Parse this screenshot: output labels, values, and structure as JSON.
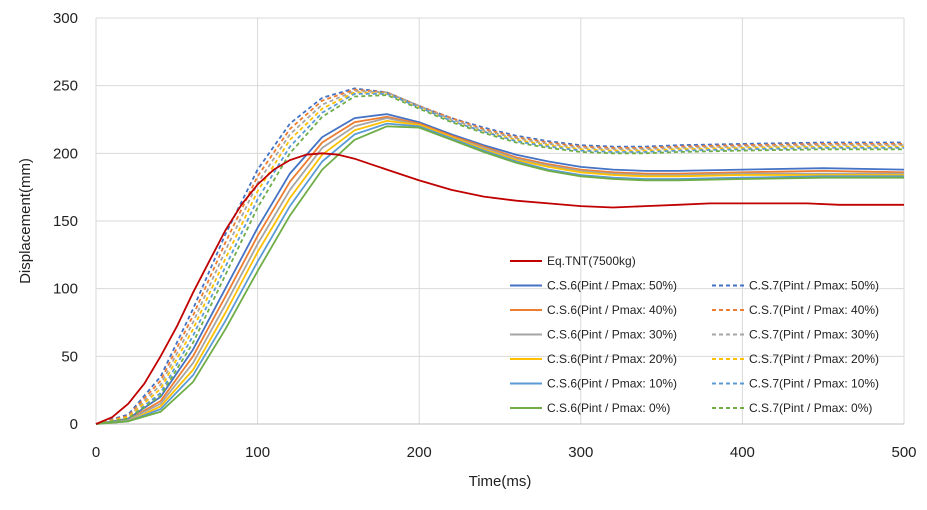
{
  "chart_data": {
    "type": "line",
    "xlabel": "Time(ms)",
    "ylabel": "Displacement(mm)",
    "xlim": [
      0,
      500
    ],
    "ylim": [
      0,
      300
    ],
    "xticks": [
      0,
      100,
      200,
      300,
      400,
      500
    ],
    "yticks": [
      0,
      50,
      100,
      150,
      200,
      250,
      300
    ],
    "grid": true,
    "legend_position": "bottom-right",
    "series": [
      {
        "name": "Eq.TNT(7500kg)",
        "color": "#c00000",
        "dash": "solid",
        "x": [
          0,
          10,
          20,
          30,
          40,
          50,
          60,
          70,
          80,
          90,
          100,
          110,
          120,
          130,
          140,
          150,
          160,
          170,
          180,
          190,
          200,
          220,
          240,
          260,
          280,
          300,
          320,
          340,
          360,
          380,
          400,
          420,
          440,
          460,
          480,
          500
        ],
        "y": [
          0,
          5,
          15,
          30,
          50,
          72,
          97,
          120,
          143,
          162,
          177,
          188,
          195,
          199,
          200,
          199,
          196,
          192,
          188,
          184,
          180,
          173,
          168,
          165,
          163,
          161,
          160,
          161,
          162,
          163,
          163,
          163,
          163,
          162,
          162,
          162
        ]
      },
      {
        "name": "C.S.6(Pint / Pmax: 50%)",
        "color": "#4472c4",
        "dash": "solid",
        "x": [
          0,
          20,
          40,
          60,
          80,
          100,
          120,
          140,
          160,
          180,
          200,
          220,
          240,
          260,
          280,
          300,
          320,
          340,
          360,
          400,
          450,
          500
        ],
        "y": [
          0,
          4,
          20,
          55,
          100,
          145,
          185,
          212,
          226,
          229,
          223,
          214,
          206,
          199,
          194,
          190,
          188,
          187,
          187,
          188,
          189,
          188
        ]
      },
      {
        "name": "C.S.6(Pint / Pmax: 40%)",
        "color": "#ed7d31",
        "dash": "solid",
        "x": [
          0,
          20,
          40,
          60,
          80,
          100,
          120,
          140,
          160,
          180,
          200,
          220,
          240,
          260,
          280,
          300,
          320,
          340,
          360,
          400,
          450,
          500
        ],
        "y": [
          0,
          3,
          17,
          50,
          94,
          139,
          179,
          208,
          223,
          227,
          222,
          213,
          205,
          197,
          192,
          188,
          186,
          185,
          185,
          186,
          187,
          186
        ]
      },
      {
        "name": "C.S.6(Pint / Pmax: 30%)",
        "color": "#a5a5a5",
        "dash": "solid",
        "x": [
          0,
          20,
          40,
          60,
          80,
          100,
          120,
          140,
          160,
          180,
          200,
          220,
          240,
          260,
          280,
          300,
          320,
          340,
          360,
          400,
          450,
          500
        ],
        "y": [
          0,
          3,
          15,
          45,
          88,
          133,
          173,
          204,
          220,
          226,
          221,
          212,
          204,
          196,
          191,
          187,
          185,
          184,
          184,
          185,
          185,
          185
        ]
      },
      {
        "name": "C.S.6(Pint / Pmax: 20%)",
        "color": "#ffc000",
        "dash": "solid",
        "x": [
          0,
          20,
          40,
          60,
          80,
          100,
          120,
          140,
          160,
          180,
          200,
          220,
          240,
          260,
          280,
          300,
          320,
          340,
          360,
          400,
          450,
          500
        ],
        "y": [
          0,
          2,
          13,
          40,
          82,
          127,
          167,
          199,
          217,
          224,
          221,
          212,
          203,
          195,
          190,
          186,
          184,
          183,
          183,
          184,
          184,
          184
        ]
      },
      {
        "name": "C.S.6(Pint / Pmax: 10%)",
        "color": "#5b9bd5",
        "dash": "solid",
        "x": [
          0,
          20,
          40,
          60,
          80,
          100,
          120,
          140,
          160,
          180,
          200,
          220,
          240,
          260,
          280,
          300,
          320,
          340,
          360,
          400,
          450,
          500
        ],
        "y": [
          0,
          2,
          11,
          36,
          76,
          120,
          161,
          194,
          214,
          222,
          220,
          211,
          202,
          194,
          188,
          184,
          182,
          181,
          181,
          182,
          183,
          183
        ]
      },
      {
        "name": "C.S.6(Pint / Pmax: 0%)",
        "color": "#70ad47",
        "dash": "solid",
        "x": [
          0,
          20,
          40,
          60,
          80,
          100,
          120,
          140,
          160,
          180,
          200,
          220,
          240,
          260,
          280,
          300,
          320,
          340,
          360,
          400,
          450,
          500
        ],
        "y": [
          0,
          2,
          9,
          31,
          70,
          113,
          154,
          188,
          210,
          220,
          219,
          210,
          201,
          193,
          187,
          183,
          181,
          180,
          180,
          181,
          182,
          182
        ]
      },
      {
        "name": "C.S.7(Pint / Pmax: 50%)",
        "color": "#4472c4",
        "dash": "dashed",
        "x": [
          0,
          20,
          40,
          60,
          80,
          100,
          120,
          140,
          160,
          180,
          200,
          220,
          240,
          260,
          280,
          300,
          320,
          340,
          360,
          400,
          450,
          500
        ],
        "y": [
          0,
          7,
          35,
          85,
          140,
          188,
          222,
          241,
          248,
          245,
          235,
          226,
          219,
          213,
          209,
          206,
          205,
          205,
          206,
          207,
          208,
          208
        ]
      },
      {
        "name": "C.S.7(Pint / Pmax: 40%)",
        "color": "#ed7d31",
        "dash": "dashed",
        "x": [
          0,
          20,
          40,
          60,
          80,
          100,
          120,
          140,
          160,
          180,
          200,
          220,
          240,
          260,
          280,
          300,
          320,
          340,
          360,
          400,
          450,
          500
        ],
        "y": [
          0,
          6,
          32,
          80,
          134,
          183,
          218,
          239,
          247,
          245,
          235,
          226,
          218,
          212,
          208,
          205,
          204,
          204,
          205,
          206,
          207,
          207
        ]
      },
      {
        "name": "C.S.7(Pint / Pmax: 30%)",
        "color": "#a5a5a5",
        "dash": "dashed",
        "x": [
          0,
          20,
          40,
          60,
          80,
          100,
          120,
          140,
          160,
          180,
          200,
          220,
          240,
          260,
          280,
          300,
          320,
          340,
          360,
          400,
          450,
          500
        ],
        "y": [
          0,
          5,
          29,
          75,
          128,
          178,
          214,
          236,
          246,
          245,
          235,
          225,
          217,
          211,
          207,
          204,
          203,
          203,
          204,
          205,
          206,
          206
        ]
      },
      {
        "name": "C.S.7(Pint / Pmax: 20%)",
        "color": "#ffc000",
        "dash": "dashed",
        "x": [
          0,
          20,
          40,
          60,
          80,
          100,
          120,
          140,
          160,
          180,
          200,
          220,
          240,
          260,
          280,
          300,
          320,
          340,
          360,
          400,
          450,
          500
        ],
        "y": [
          0,
          5,
          26,
          70,
          122,
          172,
          210,
          233,
          245,
          244,
          234,
          224,
          216,
          210,
          206,
          203,
          202,
          202,
          203,
          204,
          205,
          205
        ]
      },
      {
        "name": "C.S.7(Pint / Pmax: 10%)",
        "color": "#5b9bd5",
        "dash": "dashed",
        "x": [
          0,
          20,
          40,
          60,
          80,
          100,
          120,
          140,
          160,
          180,
          200,
          220,
          240,
          260,
          280,
          300,
          320,
          340,
          360,
          400,
          450,
          500
        ],
        "y": [
          0,
          4,
          23,
          65,
          116,
          166,
          205,
          230,
          244,
          244,
          234,
          224,
          216,
          209,
          205,
          202,
          201,
          201,
          202,
          203,
          204,
          204
        ]
      },
      {
        "name": "C.S.7(Pint / Pmax: 0%)",
        "color": "#70ad47",
        "dash": "dashed",
        "x": [
          0,
          20,
          40,
          60,
          80,
          100,
          120,
          140,
          160,
          180,
          200,
          220,
          240,
          260,
          280,
          300,
          320,
          340,
          360,
          400,
          450,
          500
        ],
        "y": [
          0,
          4,
          21,
          60,
          110,
          160,
          200,
          227,
          242,
          243,
          233,
          223,
          215,
          208,
          204,
          201,
          200,
          200,
          201,
          202,
          203,
          203
        ]
      }
    ]
  }
}
